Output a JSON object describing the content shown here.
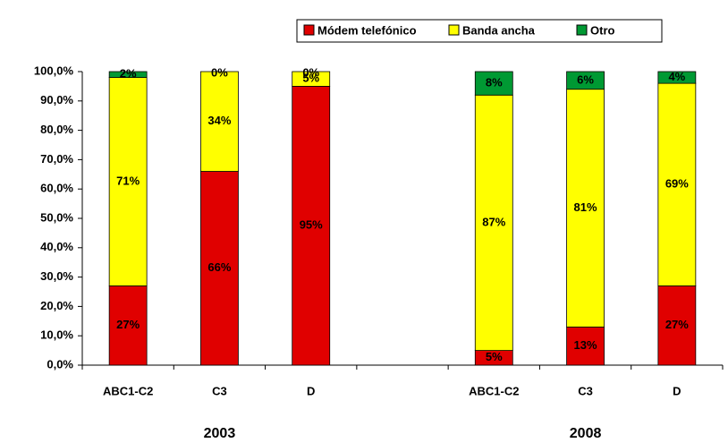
{
  "chart_data": {
    "type": "stacked_bar",
    "categories": [
      "ABC1-C2",
      "C3",
      "D",
      null,
      "ABC1-C2",
      "C3",
      "D"
    ],
    "group_labels": [
      "2003",
      "2008"
    ],
    "series": [
      {
        "name": "Módem telefónico",
        "color": "#e00000",
        "values": [
          27,
          66,
          95,
          null,
          5,
          13,
          27
        ],
        "value_labels": [
          "27%",
          "66%",
          "95%",
          null,
          "5%",
          "13%",
          "27%"
        ]
      },
      {
        "name": "Banda ancha",
        "color": "#ffff00",
        "values": [
          71,
          34,
          5,
          null,
          87,
          81,
          69
        ],
        "value_labels": [
          "71%",
          "34%",
          "5%",
          null,
          "87%",
          "81%",
          "69%"
        ]
      },
      {
        "name": "Otro",
        "color": "#009933",
        "values": [
          2,
          0,
          0,
          null,
          8,
          6,
          4
        ],
        "value_labels": [
          "2%",
          "0%",
          "0%",
          null,
          "8%",
          "6%",
          "4%"
        ]
      }
    ],
    "ylim": [
      0,
      100
    ],
    "yticks": [
      {
        "value": 0,
        "label": "0,0%"
      },
      {
        "value": 10,
        "label": "10,0%"
      },
      {
        "value": 20,
        "label": "20,0%"
      },
      {
        "value": 30,
        "label": "30,0%"
      },
      {
        "value": 40,
        "label": "40,0%"
      },
      {
        "value": 50,
        "label": "50,0%"
      },
      {
        "value": 60,
        "label": "60,0%"
      },
      {
        "value": 70,
        "label": "70,0%"
      },
      {
        "value": 80,
        "label": "80,0%"
      },
      {
        "value": 90,
        "label": "90,0%"
      },
      {
        "value": 100,
        "label": "100,0%"
      }
    ],
    "legend": "top"
  }
}
